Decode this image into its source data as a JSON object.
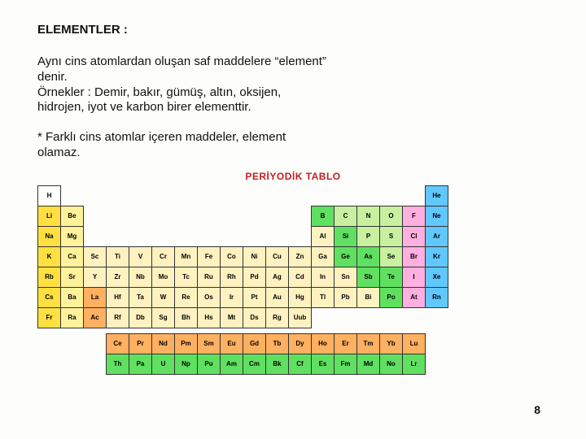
{
  "heading": "ELEMENTLER :",
  "paragraph": "Aynı cins atomlardan oluşan saf maddelere \"element\" denir.\nÖrnekler : Demir, bakır, gümüş, altın, oksijen, hidrojen, iyot ve karbon birer elementtir.",
  "note": "* Farklı cins atomlar içeren maddeler, element olamaz.",
  "page_number": "8",
  "periodic_table": {
    "title": "PERİYODİK TABLO",
    "title_color": "#c02020",
    "grid_cols": 18,
    "cell_border_color": "#333333",
    "colors": {
      "white": "#ffffff",
      "yellow": "#ffe040",
      "lyellow": "#fff29a",
      "cream": "#fff2c0",
      "pink": "#ffb0e0",
      "green": "#60e060",
      "lgreen": "#c8f0a0",
      "blue": "#60c8ff",
      "orange": "#ffb060"
    },
    "rows": [
      [
        {
          "s": "H",
          "c": "white"
        },
        null,
        null,
        null,
        null,
        null,
        null,
        null,
        null,
        null,
        null,
        null,
        null,
        null,
        null,
        null,
        null,
        {
          "s": "He",
          "c": "blue"
        }
      ],
      [
        {
          "s": "Li",
          "c": "yellow"
        },
        {
          "s": "Be",
          "c": "lyellow"
        },
        null,
        null,
        null,
        null,
        null,
        null,
        null,
        null,
        null,
        null,
        {
          "s": "B",
          "c": "green"
        },
        {
          "s": "C",
          "c": "lgreen"
        },
        {
          "s": "N",
          "c": "lgreen"
        },
        {
          "s": "O",
          "c": "lgreen"
        },
        {
          "s": "F",
          "c": "pink"
        },
        {
          "s": "Ne",
          "c": "blue"
        }
      ],
      [
        {
          "s": "Na",
          "c": "yellow"
        },
        {
          "s": "Mg",
          "c": "lyellow"
        },
        null,
        null,
        null,
        null,
        null,
        null,
        null,
        null,
        null,
        null,
        {
          "s": "Al",
          "c": "cream"
        },
        {
          "s": "Si",
          "c": "green"
        },
        {
          "s": "P",
          "c": "lgreen"
        },
        {
          "s": "S",
          "c": "lgreen"
        },
        {
          "s": "Cl",
          "c": "pink"
        },
        {
          "s": "Ar",
          "c": "blue"
        }
      ],
      [
        {
          "s": "K",
          "c": "yellow"
        },
        {
          "s": "Ca",
          "c": "lyellow"
        },
        {
          "s": "Sc",
          "c": "cream"
        },
        {
          "s": "Ti",
          "c": "cream"
        },
        {
          "s": "V",
          "c": "cream"
        },
        {
          "s": "Cr",
          "c": "cream"
        },
        {
          "s": "Mn",
          "c": "cream"
        },
        {
          "s": "Fe",
          "c": "cream"
        },
        {
          "s": "Co",
          "c": "cream"
        },
        {
          "s": "Ni",
          "c": "cream"
        },
        {
          "s": "Cu",
          "c": "cream"
        },
        {
          "s": "Zn",
          "c": "cream"
        },
        {
          "s": "Ga",
          "c": "cream"
        },
        {
          "s": "Ge",
          "c": "green"
        },
        {
          "s": "As",
          "c": "green"
        },
        {
          "s": "Se",
          "c": "lgreen"
        },
        {
          "s": "Br",
          "c": "pink"
        },
        {
          "s": "Kr",
          "c": "blue"
        }
      ],
      [
        {
          "s": "Rb",
          "c": "yellow"
        },
        {
          "s": "Sr",
          "c": "lyellow"
        },
        {
          "s": "Y",
          "c": "cream"
        },
        {
          "s": "Zr",
          "c": "cream"
        },
        {
          "s": "Nb",
          "c": "cream"
        },
        {
          "s": "Mo",
          "c": "cream"
        },
        {
          "s": "Tc",
          "c": "cream"
        },
        {
          "s": "Ru",
          "c": "cream"
        },
        {
          "s": "Rh",
          "c": "cream"
        },
        {
          "s": "Pd",
          "c": "cream"
        },
        {
          "s": "Ag",
          "c": "cream"
        },
        {
          "s": "Cd",
          "c": "cream"
        },
        {
          "s": "In",
          "c": "cream"
        },
        {
          "s": "Sn",
          "c": "cream"
        },
        {
          "s": "Sb",
          "c": "green"
        },
        {
          "s": "Te",
          "c": "green"
        },
        {
          "s": "I",
          "c": "pink"
        },
        {
          "s": "Xe",
          "c": "blue"
        }
      ],
      [
        {
          "s": "Cs",
          "c": "yellow"
        },
        {
          "s": "Ba",
          "c": "lyellow"
        },
        {
          "s": "La",
          "c": "orange"
        },
        {
          "s": "Hf",
          "c": "cream"
        },
        {
          "s": "Ta",
          "c": "cream"
        },
        {
          "s": "W",
          "c": "cream"
        },
        {
          "s": "Re",
          "c": "cream"
        },
        {
          "s": "Os",
          "c": "cream"
        },
        {
          "s": "Ir",
          "c": "cream"
        },
        {
          "s": "Pt",
          "c": "cream"
        },
        {
          "s": "Au",
          "c": "cream"
        },
        {
          "s": "Hg",
          "c": "cream"
        },
        {
          "s": "Tl",
          "c": "cream"
        },
        {
          "s": "Pb",
          "c": "cream"
        },
        {
          "s": "Bi",
          "c": "cream"
        },
        {
          "s": "Po",
          "c": "green"
        },
        {
          "s": "At",
          "c": "pink"
        },
        {
          "s": "Rn",
          "c": "blue"
        }
      ],
      [
        {
          "s": "Fr",
          "c": "yellow"
        },
        {
          "s": "Ra",
          "c": "lyellow"
        },
        {
          "s": "Ac",
          "c": "orange"
        },
        {
          "s": "Rf",
          "c": "cream"
        },
        {
          "s": "Db",
          "c": "cream"
        },
        {
          "s": "Sg",
          "c": "cream"
        },
        {
          "s": "Bh",
          "c": "cream"
        },
        {
          "s": "Hs",
          "c": "cream"
        },
        {
          "s": "Mt",
          "c": "cream"
        },
        {
          "s": "Ds",
          "c": "cream"
        },
        {
          "s": "Rg",
          "c": "cream"
        },
        {
          "s": "Uub",
          "c": "cream"
        },
        null,
        null,
        null,
        null,
        null,
        null
      ]
    ],
    "f_block": [
      [
        {
          "s": "Ce",
          "c": "orange"
        },
        {
          "s": "Pr",
          "c": "orange"
        },
        {
          "s": "Nd",
          "c": "orange"
        },
        {
          "s": "Pm",
          "c": "orange"
        },
        {
          "s": "Sm",
          "c": "orange"
        },
        {
          "s": "Eu",
          "c": "orange"
        },
        {
          "s": "Gd",
          "c": "orange"
        },
        {
          "s": "Tb",
          "c": "orange"
        },
        {
          "s": "Dy",
          "c": "orange"
        },
        {
          "s": "Ho",
          "c": "orange"
        },
        {
          "s": "Er",
          "c": "orange"
        },
        {
          "s": "Tm",
          "c": "orange"
        },
        {
          "s": "Yb",
          "c": "orange"
        },
        {
          "s": "Lu",
          "c": "orange"
        }
      ],
      [
        {
          "s": "Th",
          "c": "green"
        },
        {
          "s": "Pa",
          "c": "green"
        },
        {
          "s": "U",
          "c": "green"
        },
        {
          "s": "Np",
          "c": "green"
        },
        {
          "s": "Pu",
          "c": "green"
        },
        {
          "s": "Am",
          "c": "green"
        },
        {
          "s": "Cm",
          "c": "green"
        },
        {
          "s": "Bk",
          "c": "green"
        },
        {
          "s": "Cf",
          "c": "green"
        },
        {
          "s": "Es",
          "c": "green"
        },
        {
          "s": "Fm",
          "c": "green"
        },
        {
          "s": "Md",
          "c": "green"
        },
        {
          "s": "No",
          "c": "green"
        },
        {
          "s": "Lr",
          "c": "green"
        }
      ]
    ]
  }
}
